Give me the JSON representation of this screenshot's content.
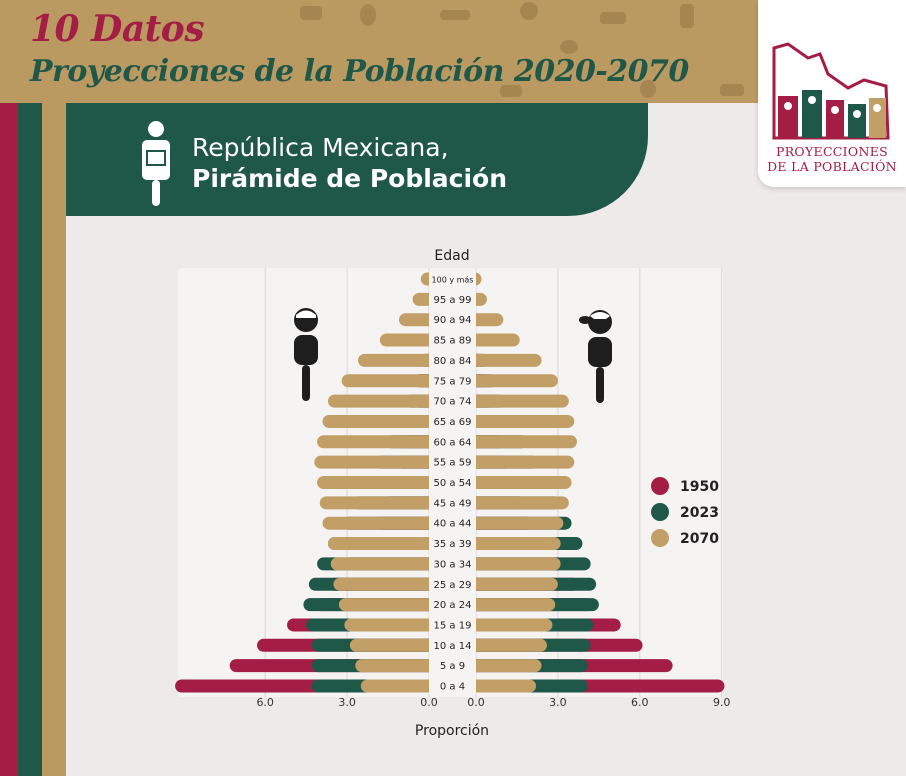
{
  "header": {
    "title_line1": "10 Datos",
    "title_line2": "Proyecciones de la Población 2020-2070"
  },
  "banner": {
    "line1": "República Mexicana,",
    "line2": "Pirámide de Población",
    "icon": "person-with-sign-icon"
  },
  "logo": {
    "line1": "PROYECCIONES",
    "line2": "DE LA POBLACIÓN"
  },
  "colors": {
    "crimson": "#a31d44",
    "green": "#1f5749",
    "gold": "#c29f66",
    "background": "#efeaea"
  },
  "chart_data": {
    "type": "bar",
    "orientation": "horizontal-population-pyramid",
    "ylabel": "Edad",
    "xlabel": "Proporción",
    "categories": [
      "0 a 4",
      "5 a 9",
      "10 a 14",
      "15 a 19",
      "20 a 24",
      "25 a 29",
      "30 a 34",
      "35 a 39",
      "40 a 44",
      "45 a 49",
      "50 a 54",
      "55 a 59",
      "60 a 64",
      "65 a 69",
      "70 a 74",
      "75 a 79",
      "80 a 84",
      "85 a 89",
      "90 a 94",
      "95 a 99",
      "100 y más"
    ],
    "left_ticks": [
      "6.0",
      "3.0",
      "0.0"
    ],
    "left_tick_values": [
      6,
      3,
      0
    ],
    "right_ticks": [
      "0.0",
      "3.0",
      "6.0",
      "9.0"
    ],
    "right_tick_values": [
      0,
      3,
      6,
      9
    ],
    "left_xlim": [
      0,
      9
    ],
    "right_xlim": [
      0,
      9
    ],
    "sides": {
      "left": "men",
      "right": "women"
    },
    "side_icons": {
      "left": "man-icon",
      "right": "woman-icon"
    },
    "legend_position": "right",
    "series": [
      {
        "name": "1950",
        "color": "#a31d44",
        "left": [
          9.3,
          7.3,
          6.3,
          5.2,
          4.2,
          3.7,
          3.1,
          2.5,
          2.0,
          1.7,
          1.5,
          1.2,
          1.0,
          0.8,
          0.6,
          0.5,
          0.3,
          0.2,
          0.1,
          0.05,
          0.02
        ],
        "right": [
          9.1,
          7.2,
          6.1,
          5.3,
          4.3,
          3.8,
          3.2,
          2.6,
          2.1,
          1.8,
          1.6,
          1.3,
          1.1,
          0.9,
          0.7,
          0.5,
          0.3,
          0.2,
          0.1,
          0.05,
          0.02
        ]
      },
      {
        "name": "2023",
        "color": "#1f5749",
        "left": [
          4.3,
          4.3,
          4.3,
          4.5,
          4.6,
          4.4,
          4.1,
          3.7,
          3.2,
          2.8,
          2.4,
          2.0,
          1.6,
          1.2,
          0.9,
          0.6,
          0.4,
          0.2,
          0.1,
          0.04,
          0.01
        ],
        "right": [
          4.1,
          4.1,
          4.2,
          4.3,
          4.5,
          4.4,
          4.2,
          3.9,
          3.5,
          3.1,
          2.7,
          2.3,
          1.9,
          1.5,
          1.1,
          0.8,
          0.5,
          0.3,
          0.15,
          0.05,
          0.02
        ]
      },
      {
        "name": "2070",
        "color": "#c29f66",
        "left": [
          2.5,
          2.7,
          2.9,
          3.1,
          3.3,
          3.5,
          3.6,
          3.7,
          3.9,
          4.0,
          4.1,
          4.2,
          4.1,
          3.9,
          3.7,
          3.2,
          2.6,
          1.8,
          1.1,
          0.6,
          0.3
        ],
        "right": [
          2.2,
          2.4,
          2.6,
          2.8,
          2.9,
          3.0,
          3.1,
          3.1,
          3.2,
          3.4,
          3.5,
          3.6,
          3.7,
          3.6,
          3.4,
          3.0,
          2.4,
          1.6,
          1.0,
          0.4,
          0.2
        ]
      }
    ]
  }
}
